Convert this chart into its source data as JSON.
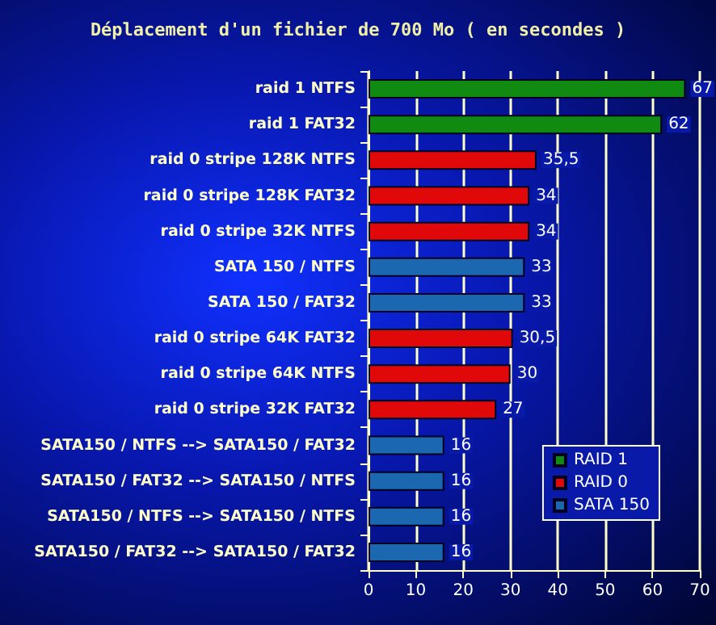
{
  "chart_data": {
    "type": "bar",
    "orientation": "horizontal",
    "stacked": true,
    "title": "Déplacement d'un fichier de 700 Mo ( en secondes )",
    "categories": [
      "raid 1 NTFS",
      "raid 1 FAT32",
      "raid 0 stripe 128K NTFS",
      "raid 0 stripe 128K FAT32",
      "raid 0 stripe 32K NTFS",
      "SATA 150 / NTFS",
      "SATA 150 / FAT32",
      "raid 0 stripe 64K FAT32",
      "raid 0 stripe 64K NTFS",
      "raid 0 stripe 32K FAT32",
      "SATA150 / NTFS --> SATA150 / FAT32",
      "SATA150 / FAT32 --> SATA150 / NTFS",
      "SATA150 / NTFS --> SATA150 / NTFS",
      "SATA150 / FAT32 --> SATA150 / FAT32"
    ],
    "series": [
      {
        "name": "RAID 1",
        "color": "#108a10",
        "values": [
          67,
          62,
          null,
          null,
          null,
          null,
          null,
          null,
          null,
          null,
          null,
          null,
          null,
          null
        ],
        "value_labels": [
          "67",
          "62",
          null,
          null,
          null,
          null,
          null,
          null,
          null,
          null,
          null,
          null,
          null,
          null
        ]
      },
      {
        "name": "RAID 0",
        "color": "#e00808",
        "values": [
          null,
          null,
          35.5,
          34,
          34,
          null,
          null,
          30.5,
          30,
          27,
          null,
          null,
          null,
          null
        ],
        "value_labels": [
          null,
          null,
          "35,5",
          "34",
          "34",
          null,
          null,
          "30,5",
          "30",
          "27",
          null,
          null,
          null,
          null
        ]
      },
      {
        "name": "SATA 150",
        "color": "#1c68b0",
        "values": [
          null,
          null,
          null,
          null,
          null,
          33,
          33,
          null,
          null,
          null,
          16,
          16,
          16,
          16
        ],
        "value_labels": [
          null,
          null,
          null,
          null,
          null,
          "33",
          "33",
          null,
          null,
          null,
          "16",
          "16",
          "16",
          "16"
        ]
      }
    ],
    "xlim": [
      0,
      70
    ],
    "xticks": [
      0,
      10,
      20,
      30,
      40,
      50,
      60,
      70
    ],
    "grid": "x",
    "legend": "bottom right"
  }
}
